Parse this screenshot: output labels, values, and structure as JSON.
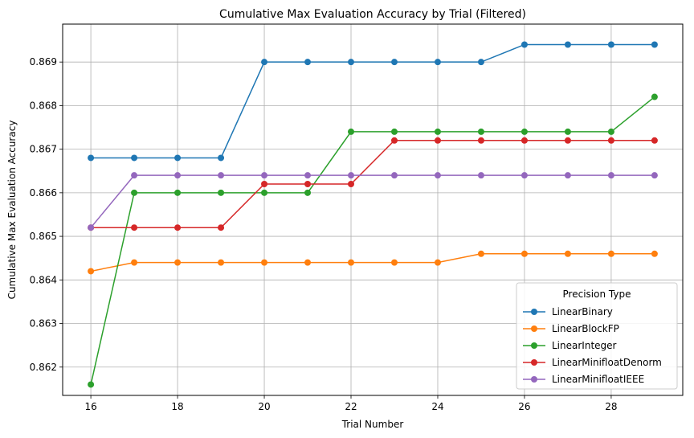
{
  "chart_data": {
    "type": "line",
    "title": "Cumulative Max Evaluation Accuracy by Trial (Filtered)",
    "xlabel": "Trial Number",
    "ylabel": "Cumulative Max Evaluation Accuracy",
    "x": [
      16,
      17,
      18,
      19,
      20,
      21,
      22,
      23,
      24,
      25,
      26,
      27,
      28,
      29
    ],
    "xlim": [
      15.35,
      29.65
    ],
    "ylim": [
      0.86135,
      0.86987
    ],
    "xticks": [
      16,
      18,
      20,
      22,
      24,
      26,
      28
    ],
    "yticks": [
      0.862,
      0.863,
      0.864,
      0.865,
      0.866,
      0.867,
      0.868,
      0.869
    ],
    "xtick_labels": [
      "16",
      "18",
      "20",
      "22",
      "24",
      "26",
      "28"
    ],
    "ytick_labels": [
      "0.862",
      "0.863",
      "0.864",
      "0.865",
      "0.866",
      "0.867",
      "0.868",
      "0.869"
    ],
    "grid": true,
    "legend": {
      "title": "Precision Type",
      "position": "lower right"
    },
    "series": [
      {
        "name": "LinearBinary",
        "color": "#1f77b4",
        "values": [
          0.8668,
          0.8668,
          0.8668,
          0.8668,
          0.869,
          0.869,
          0.869,
          0.869,
          0.869,
          0.869,
          0.8694,
          0.8694,
          0.8694,
          0.8694
        ]
      },
      {
        "name": "LinearBlockFP",
        "color": "#ff7f0e",
        "values": [
          0.8642,
          0.8644,
          0.8644,
          0.8644,
          0.8644,
          0.8644,
          0.8644,
          0.8644,
          0.8644,
          0.8646,
          0.8646,
          0.8646,
          0.8646,
          0.8646
        ]
      },
      {
        "name": "LinearInteger",
        "color": "#2ca02c",
        "values": [
          0.8616,
          0.866,
          0.866,
          0.866,
          0.866,
          0.866,
          0.8674,
          0.8674,
          0.8674,
          0.8674,
          0.8674,
          0.8674,
          0.8674,
          0.8682
        ]
      },
      {
        "name": "LinearMinifloatDenorm",
        "color": "#d62728",
        "values": [
          0.8652,
          0.8652,
          0.8652,
          0.8652,
          0.8662,
          0.8662,
          0.8662,
          0.8672,
          0.8672,
          0.8672,
          0.8672,
          0.8672,
          0.8672,
          0.8672
        ]
      },
      {
        "name": "LinearMinifloatIEEE",
        "color": "#9467bd",
        "values": [
          0.8652,
          0.8664,
          0.8664,
          0.8664,
          0.8664,
          0.8664,
          0.8664,
          0.8664,
          0.8664,
          0.8664,
          0.8664,
          0.8664,
          0.8664,
          0.8664
        ]
      }
    ]
  }
}
